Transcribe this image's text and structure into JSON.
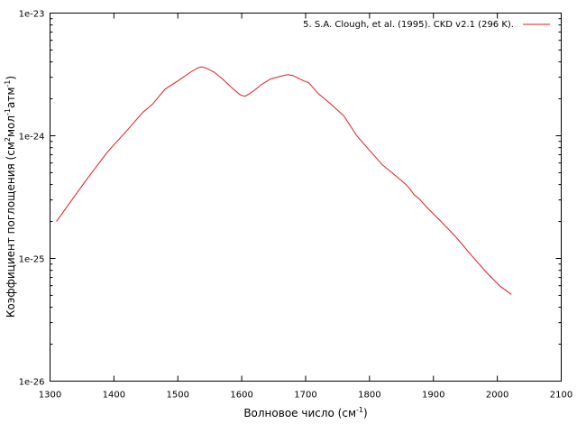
{
  "chart_data": {
    "type": "line",
    "xlabel": "Волновое число (см",
    "xlabel_sup": "-1",
    "xlabel_end": ")",
    "ylabel_parts": [
      "Коэффициент поглощения (см",
      "2",
      "мол",
      "-1",
      "атм",
      "-1",
      ")"
    ],
    "xlim": [
      1300,
      2100
    ],
    "ylim": [
      1e-26,
      1e-23
    ],
    "yscale": "log",
    "x_ticks": [
      "1300",
      "1400",
      "1500",
      "1600",
      "1700",
      "1800",
      "1900",
      "2000",
      "2100"
    ],
    "y_ticks": [
      "1e-26",
      "1e-25",
      "1e-24",
      "1e-23"
    ],
    "legend_position": "top-right",
    "grid": false,
    "series": [
      {
        "name": "5. S.A. Clough, et al. (1995). CKD v2.1 (296 K).",
        "color": "#e41a1c",
        "x": [
          1310,
          1330,
          1360,
          1390,
          1420,
          1445,
          1460,
          1480,
          1500,
          1520,
          1530,
          1537,
          1545,
          1557,
          1570,
          1585,
          1598,
          1605,
          1612,
          1620,
          1630,
          1645,
          1660,
          1672,
          1680,
          1688,
          1697,
          1705,
          1720,
          1740,
          1760,
          1780,
          1800,
          1820,
          1835,
          1850,
          1857,
          1863,
          1870,
          1878,
          1890,
          1910,
          1935,
          1960,
          1985,
          2005,
          2022
        ],
        "y": [
          2e-25,
          2.8e-25,
          4.6e-25,
          7.4e-25,
          1.1e-24,
          1.55e-24,
          1.8e-24,
          2.4e-24,
          2.8e-24,
          3.3e-24,
          3.55e-24,
          3.65e-24,
          3.55e-24,
          3.3e-24,
          2.9e-24,
          2.45e-24,
          2.15e-24,
          2.1e-24,
          2.2e-24,
          2.35e-24,
          2.6e-24,
          2.9e-24,
          3.05e-24,
          3.15e-24,
          3.1e-24,
          2.95e-24,
          2.8e-24,
          2.7e-24,
          2.2e-24,
          1.8e-24,
          1.45e-24,
          1e-24,
          7.6e-25,
          5.8e-25,
          5e-25,
          4.3e-25,
          4e-25,
          3.7e-25,
          3.3e-25,
          3.05e-25,
          2.6e-25,
          2.05e-25,
          1.5e-25,
          1.05e-25,
          7.5e-26,
          5.9e-26,
          5.1e-26
        ]
      }
    ]
  }
}
